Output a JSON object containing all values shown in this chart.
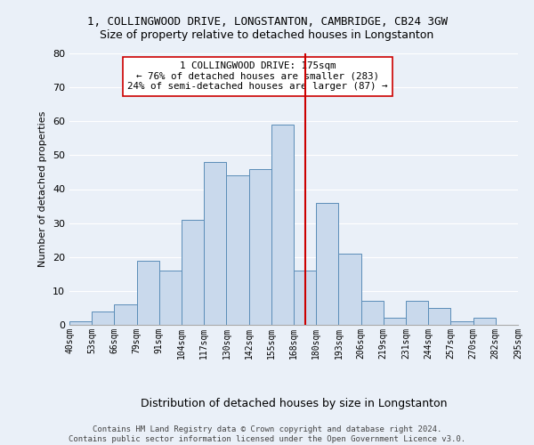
{
  "title": "1, COLLINGWOOD DRIVE, LONGSTANTON, CAMBRIDGE, CB24 3GW",
  "subtitle": "Size of property relative to detached houses in Longstanton",
  "xlabel": "Distribution of detached houses by size in Longstanton",
  "ylabel": "Number of detached properties",
  "bar_values": [
    1,
    4,
    6,
    19,
    16,
    31,
    48,
    44,
    46,
    59,
    16,
    36,
    21,
    7,
    2,
    7,
    5,
    1,
    2,
    0
  ],
  "bin_labels": [
    "40sqm",
    "53sqm",
    "66sqm",
    "79sqm",
    "91sqm",
    "104sqm",
    "117sqm",
    "130sqm",
    "142sqm",
    "155sqm",
    "168sqm",
    "180sqm",
    "193sqm",
    "206sqm",
    "219sqm",
    "231sqm",
    "244sqm",
    "257sqm",
    "270sqm",
    "282sqm",
    "295sqm"
  ],
  "bar_color": "#c9d9ec",
  "bar_edge_color": "#5b8db8",
  "bg_color": "#eaf0f8",
  "grid_color": "#ffffff",
  "vline_color": "#cc0000",
  "annotation_text": "1 COLLINGWOOD DRIVE: 175sqm\n← 76% of detached houses are smaller (283)\n24% of semi-detached houses are larger (87) →",
  "annotation_box_color": "#ffffff",
  "annotation_box_edge": "#cc0000",
  "footer": "Contains HM Land Registry data © Crown copyright and database right 2024.\nContains public sector information licensed under the Open Government Licence v3.0.",
  "ylim": [
    0,
    80
  ],
  "yticks": [
    0,
    10,
    20,
    30,
    40,
    50,
    60,
    70,
    80
  ],
  "title_fontsize": 9,
  "subtitle_fontsize": 9
}
